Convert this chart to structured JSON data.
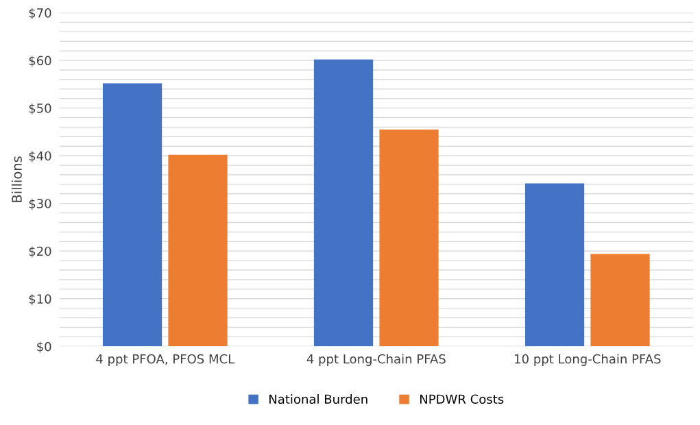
{
  "chart_data": {
    "type": "bar",
    "ylabel": "Billions",
    "categories": [
      "4 ppt PFOA, PFOS MCL",
      "4 ppt Long-Chain PFAS",
      "10 ppt Long-Chain PFAS"
    ],
    "series": [
      {
        "name": "National Burden",
        "color": "#4472c4",
        "values": [
          55.2,
          60.2,
          34.2
        ]
      },
      {
        "name": "NPDWR Costs",
        "color": "#ed7d31",
        "values": [
          40.2,
          45.5,
          19.4
        ]
      }
    ],
    "ylim": [
      0,
      70
    ],
    "yticks": [
      {
        "value": 0,
        "label": "$0"
      },
      {
        "value": 2,
        "label": null
      },
      {
        "value": 4,
        "label": null
      },
      {
        "value": 6,
        "label": null
      },
      {
        "value": 8,
        "label": null
      },
      {
        "value": 10,
        "label": "$10"
      },
      {
        "value": 12,
        "label": null
      },
      {
        "value": 14,
        "label": null
      },
      {
        "value": 16,
        "label": null
      },
      {
        "value": 18,
        "label": null
      },
      {
        "value": 20,
        "label": "$20"
      },
      {
        "value": 22,
        "label": null
      },
      {
        "value": 24,
        "label": null
      },
      {
        "value": 26,
        "label": null
      },
      {
        "value": 28,
        "label": null
      },
      {
        "value": 30,
        "label": "$30"
      },
      {
        "value": 32,
        "label": null
      },
      {
        "value": 34,
        "label": null
      },
      {
        "value": 36,
        "label": null
      },
      {
        "value": 38,
        "label": null
      },
      {
        "value": 40,
        "label": "$40"
      },
      {
        "value": 42,
        "label": null
      },
      {
        "value": 44,
        "label": null
      },
      {
        "value": 46,
        "label": null
      },
      {
        "value": 48,
        "label": null
      },
      {
        "value": 50,
        "label": "$50"
      },
      {
        "value": 52,
        "label": null
      },
      {
        "value": 54,
        "label": null
      },
      {
        "value": 56,
        "label": null
      },
      {
        "value": 58,
        "label": null
      },
      {
        "value": 60,
        "label": "$60"
      },
      {
        "value": 62,
        "label": null
      },
      {
        "value": 64,
        "label": null
      },
      {
        "value": 66,
        "label": null
      },
      {
        "value": 68,
        "label": null
      },
      {
        "value": 70,
        "label": "$70"
      }
    ],
    "grid": "y",
    "legend": "bottom"
  }
}
